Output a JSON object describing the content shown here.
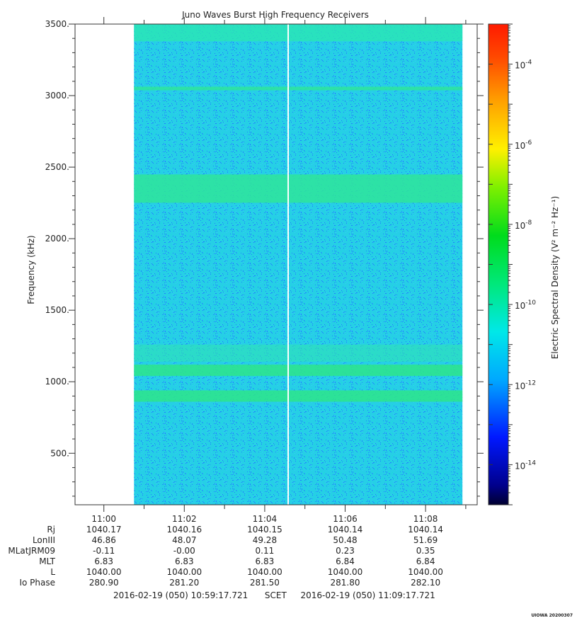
{
  "chart_data": {
    "type": "heatmap",
    "title": "Juno Waves Burst High Frequency Receivers",
    "ylabel": "Frequency (kHz)",
    "ylim": [
      140,
      3500
    ],
    "yticks": [
      500,
      1000,
      1500,
      2000,
      2500,
      3000,
      3500
    ],
    "ytick_labels": [
      "500.",
      "1000.",
      "1500.",
      "2000.",
      "2500.",
      "3000.",
      "3500."
    ],
    "x_tick_labels": [
      "11:00",
      "11:02",
      "11:04",
      "11:06",
      "11:08"
    ],
    "x_range_minutes": [
      10.6,
      11.15
    ],
    "data_interval": [
      "11:00:45",
      "11:08:55"
    ],
    "gap_time": "11:04:35",
    "bright_bands_khz": [
      900,
      1080,
      2350,
      3050
    ],
    "colorbar": {
      "label": "Electric Spectral Density (V² m⁻² Hz⁻¹)",
      "scale": "log",
      "range_exp": [
        -15,
        -3
      ],
      "tick_exps": [
        -14,
        -12,
        -10,
        -8,
        -6,
        -4
      ],
      "tick_labels": [
        "10",
        "10",
        "10",
        "10",
        "10",
        "10"
      ],
      "tick_sups": [
        "-14",
        "-12",
        "-10",
        "-8",
        "-6",
        "-4"
      ]
    }
  },
  "ephemeris": {
    "labels": [
      "Rj",
      "LonIII",
      "MLatJRM09",
      "MLT",
      "L",
      "Io Phase"
    ],
    "columns": [
      [
        "1040.17",
        "46.86",
        "-0.11",
        "6.83",
        "1040.00",
        "280.90"
      ],
      [
        "1040.16",
        "48.07",
        "-0.00",
        "6.83",
        "1040.00",
        "281.20"
      ],
      [
        "1040.15",
        "49.28",
        "0.11",
        "6.83",
        "1040.00",
        "281.50"
      ],
      [
        "1040.14",
        "50.48",
        "0.23",
        "6.84",
        "1040.00",
        "281.80"
      ],
      [
        "1040.14",
        "51.69",
        "0.35",
        "6.84",
        "1040.00",
        "282.10"
      ]
    ]
  },
  "scet": {
    "start": "2016-02-19 (050) 10:59:17.721",
    "label": "SCET",
    "end": "2016-02-19 (050) 11:09:17.721"
  },
  "stamp": "UIOWA 20200307"
}
